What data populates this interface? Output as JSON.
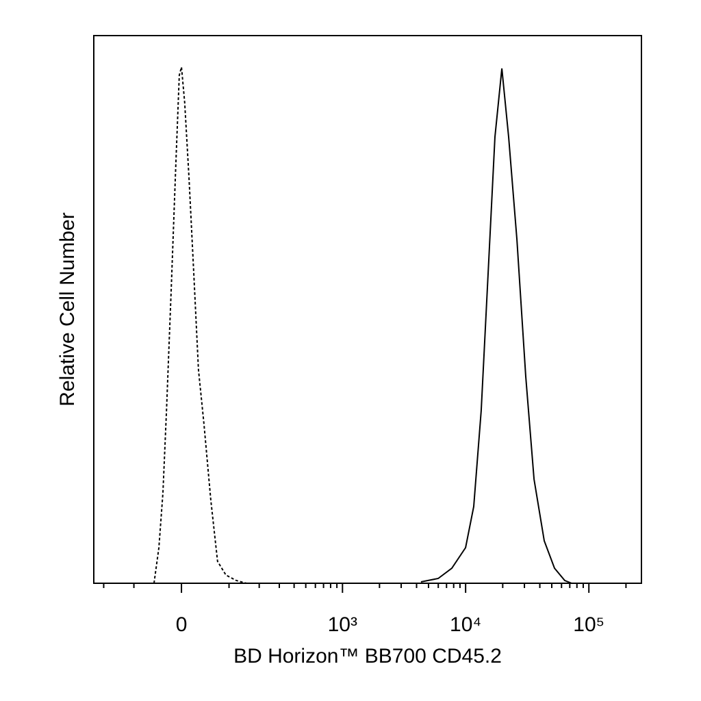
{
  "chart_data": {
    "type": "histogram-overlay",
    "x_label": "BD Horizon™ BB700 CD45.2",
    "y_label": "Relative Cell Number",
    "xscale": "biexponential",
    "xlim": [
      -245,
      267000
    ],
    "ylim": [
      0,
      100
    ],
    "xticks": [
      0,
      {
        "value": 1000,
        "label": "10³"
      },
      {
        "value": 10000,
        "label": "10⁴"
      },
      {
        "value": 100000,
        "label": "10⁵"
      }
    ],
    "xminorticks": [
      -200,
      -100,
      100,
      200,
      300,
      400,
      500,
      600,
      700,
      800,
      900,
      2000,
      3000,
      4000,
      5000,
      6000,
      7000,
      8000,
      9000,
      20000,
      30000,
      40000,
      50000,
      60000,
      70000,
      80000,
      90000,
      200000
    ],
    "series": [
      {
        "color": "#000000",
        "dash": true,
        "x": [
          -53,
          -43,
          -35,
          -28,
          -19,
          -11,
          -4,
          0,
          6,
          14,
          23,
          32,
          43,
          57,
          72,
          92,
          120,
          152
        ],
        "values": [
          0,
          6.5,
          16.5,
          31.5,
          54,
          75,
          92.75,
          94.25,
          87.75,
          74,
          56.5,
          39,
          29,
          15.25,
          4,
          1.5,
          0.5,
          0
        ]
      },
      {
        "color": "#000000",
        "dash": false,
        "x": [
          4340,
          5990,
          7730,
          9990,
          11630,
          13380,
          15220,
          17300,
          19670,
          22350,
          26060,
          30770,
          35880,
          43440,
          52620,
          63760,
          72470
        ],
        "values": [
          0.25,
          0.875,
          2.75,
          6.5,
          14,
          31.5,
          56.5,
          81.5,
          94,
          81.5,
          62.75,
          37.75,
          19,
          7.75,
          2.75,
          0.5,
          0
        ]
      }
    ]
  }
}
